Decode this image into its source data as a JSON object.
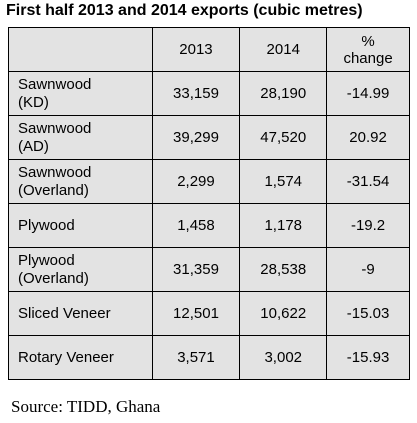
{
  "title": "First half 2013 and 2014 exports (cubic metres)",
  "source": "Source: TIDD, Ghana",
  "chart_data": {
    "type": "table",
    "title": "First half 2013 and 2014 exports (cubic metres)",
    "columns": [
      "",
      "2013",
      "2014",
      "% change"
    ],
    "rows": [
      {
        "label": [
          "Sawnwood",
          "(KD)"
        ],
        "values": [
          "33,159",
          "28,190",
          "-14.99"
        ]
      },
      {
        "label": [
          "Sawnwood",
          "(AD)"
        ],
        "values": [
          "39,299",
          "47,520",
          "20.92"
        ]
      },
      {
        "label": [
          "Sawnwood",
          "(Overland)"
        ],
        "values": [
          "2,299",
          "1,574",
          "-31.54"
        ]
      },
      {
        "label": [
          "Plywood"
        ],
        "values": [
          "1,458",
          "1,178",
          "-19.2"
        ]
      },
      {
        "label": [
          "Plywood",
          "(Overland)"
        ],
        "values": [
          "31,359",
          "28,538",
          "-9"
        ]
      },
      {
        "label": [
          "Sliced Veneer"
        ],
        "values": [
          "12,501",
          "10,622",
          "-15.03"
        ]
      },
      {
        "label": [
          "Rotary Veneer"
        ],
        "values": [
          "3,571",
          "3,002",
          "-15.93"
        ]
      }
    ]
  }
}
